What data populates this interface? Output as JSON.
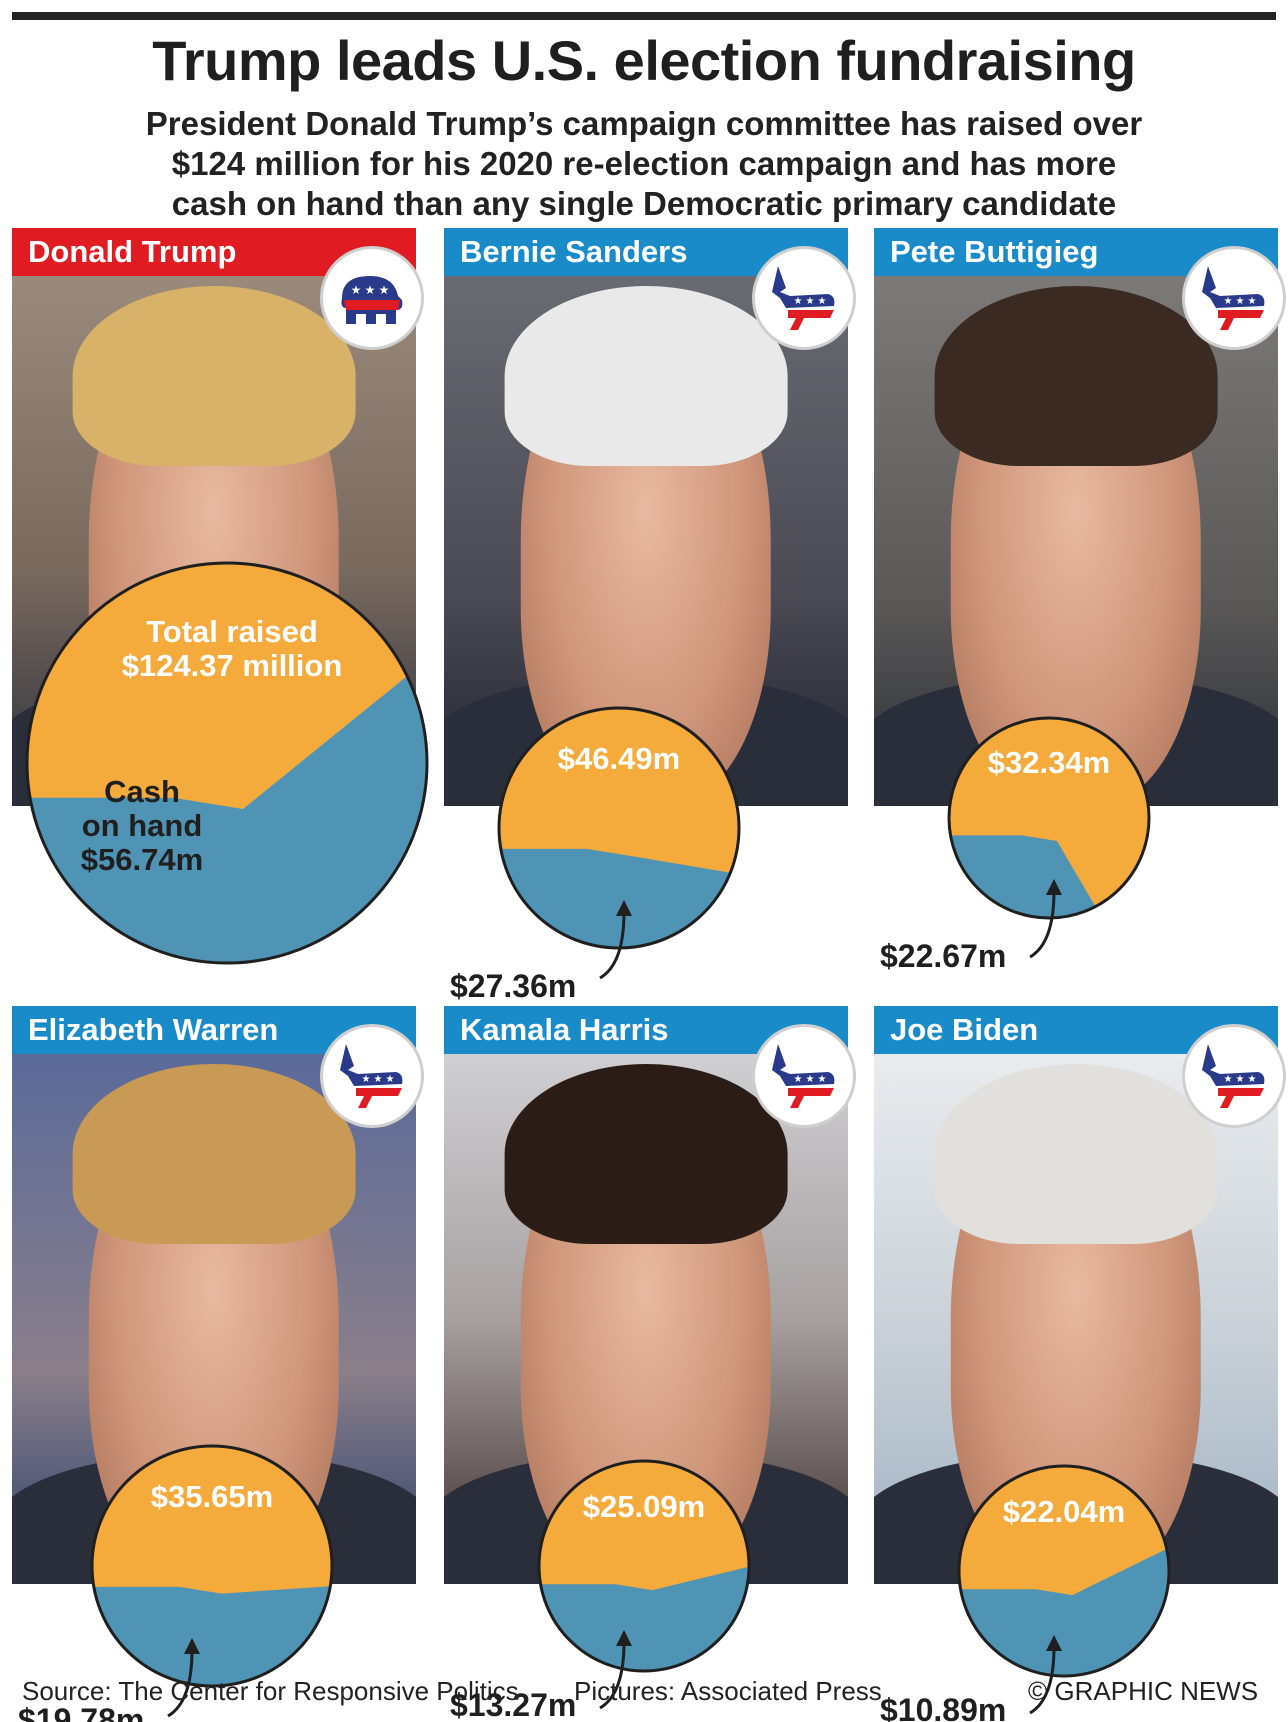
{
  "header": {
    "title": "Trump leads U.S. election fundraising",
    "subtitle_lines": [
      "President Donald Trump’s campaign committee has raised over",
      "$124 million for his 2020 re-election campaign and has more",
      "cash on hand than any single Democratic primary candidate"
    ]
  },
  "colors": {
    "republican": "#e11b22",
    "democrat": "#1a8bc9",
    "total_raised": "#4f93b5",
    "cash_on_hand": "#f5aa3c"
  },
  "chart_data": {
    "type": "pie",
    "units": "million US$",
    "candidates": [
      {
        "name": "Donald Trump",
        "party": "republican",
        "party_icon": "elephant-icon",
        "total_raised": 124.37,
        "cash_on_hand": 56.74,
        "total_label_lines": [
          "Total raised",
          "$124.37 million"
        ],
        "cash_label_lines": [
          "Cash",
          "on hand",
          "$56.74m"
        ]
      },
      {
        "name": "Bernie Sanders",
        "party": "democrat",
        "party_icon": "donkey-icon",
        "total_raised": 46.49,
        "cash_on_hand": 27.36,
        "total_label": "$46.49m",
        "cash_label": "$27.36m"
      },
      {
        "name": "Pete Buttigieg",
        "party": "democrat",
        "party_icon": "donkey-icon",
        "total_raised": 32.34,
        "cash_on_hand": 22.67,
        "total_label": "$32.34m",
        "cash_label": "$22.67m"
      },
      {
        "name": "Elizabeth Warren",
        "party": "democrat",
        "party_icon": "donkey-icon",
        "total_raised": 35.65,
        "cash_on_hand": 19.78,
        "total_label": "$35.65m",
        "cash_label": "$19.78m"
      },
      {
        "name": "Kamala Harris",
        "party": "democrat",
        "party_icon": "donkey-icon",
        "total_raised": 25.09,
        "cash_on_hand": 13.27,
        "total_label": "$25.09m",
        "cash_label": "$13.27m"
      },
      {
        "name": "Joe Biden",
        "party": "democrat",
        "party_icon": "donkey-icon",
        "total_raised": 22.04,
        "cash_on_hand": 10.89,
        "total_label": "$22.04m",
        "cash_label": "$10.89m"
      }
    ]
  },
  "footer": {
    "source": "Source: The Center for Responsive Politics",
    "pictures": "Pictures: Associated Press",
    "credit": "© GRAPHIC NEWS"
  }
}
